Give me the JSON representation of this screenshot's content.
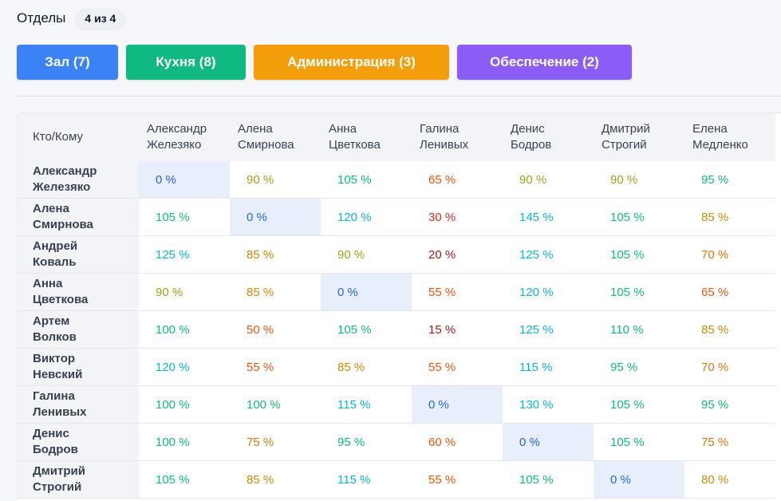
{
  "header": {
    "title": "Отделы",
    "count": "4 из 4"
  },
  "departments": [
    {
      "label": "Зал (7)",
      "color": "#3b82f6"
    },
    {
      "label": "Кухня (8)",
      "color": "#10b981"
    },
    {
      "label": "Администрация (3)",
      "color": "#f59e0b"
    },
    {
      "label": "Обеспечение (2)",
      "color": "#8b5cf6"
    }
  ],
  "table": {
    "corner": "Кто/Кому",
    "columns": [
      [
        "Александр",
        "Железяко"
      ],
      [
        "Алена",
        "Смирнова"
      ],
      [
        "Анна",
        "Цветкова"
      ],
      [
        "Галина",
        "Ленивых"
      ],
      [
        "Денис",
        "Бодров"
      ],
      [
        "Дмитрий",
        "Строгий"
      ],
      [
        "Елена",
        "Медленко"
      ]
    ],
    "rows": [
      {
        "name": [
          "Александр",
          "Железяко"
        ],
        "values": [
          0,
          90,
          105,
          65,
          90,
          90,
          95
        ]
      },
      {
        "name": [
          "Алена",
          "Смирнова"
        ],
        "values": [
          105,
          0,
          120,
          30,
          145,
          105,
          85
        ]
      },
      {
        "name": [
          "Андрей",
          "Коваль"
        ],
        "values": [
          125,
          85,
          90,
          20,
          125,
          105,
          70
        ]
      },
      {
        "name": [
          "Анна",
          "Цветкова"
        ],
        "values": [
          90,
          85,
          0,
          55,
          120,
          105,
          65
        ]
      },
      {
        "name": [
          "Артем",
          "Волков"
        ],
        "values": [
          100,
          50,
          105,
          15,
          125,
          110,
          85
        ]
      },
      {
        "name": [
          "Виктор",
          "Невский"
        ],
        "values": [
          120,
          55,
          85,
          55,
          115,
          95,
          70
        ]
      },
      {
        "name": [
          "Галина",
          "Ленивых"
        ],
        "values": [
          100,
          100,
          115,
          0,
          130,
          105,
          95
        ]
      },
      {
        "name": [
          "Денис",
          "Бодров"
        ],
        "values": [
          100,
          75,
          95,
          60,
          0,
          105,
          75
        ]
      },
      {
        "name": [
          "Дмитрий",
          "Строгий"
        ],
        "values": [
          105,
          85,
          115,
          55,
          105,
          0,
          80
        ]
      }
    ],
    "unit": "%",
    "value_colors": {
      "zero": "#2563eb",
      "very_low": "#991b1b",
      "low": "#dc2626",
      "mid_low": "#ea580c",
      "mid": "#d97706",
      "fair": "#ca8a04",
      "good": "#a3a21a",
      "great": "#10b981",
      "high": "#06b6d4"
    }
  }
}
